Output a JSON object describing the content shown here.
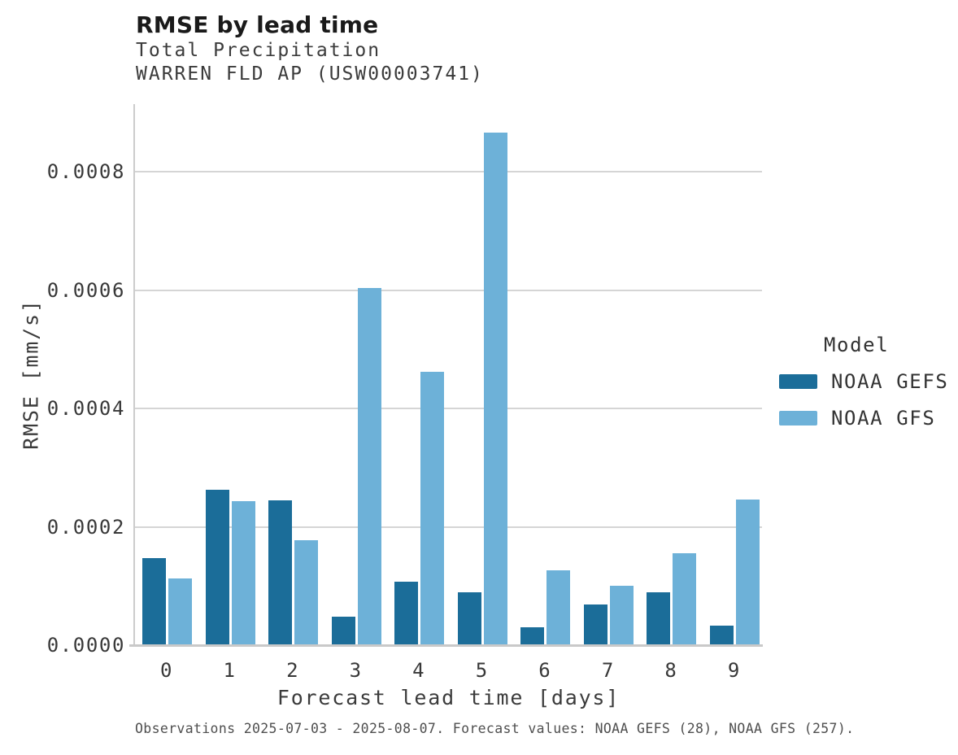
{
  "chart_data": {
    "type": "bar",
    "title": "RMSE by lead time",
    "subtitle1": "Total Precipitation",
    "subtitle2": "WARREN FLD AP (USW00003741)",
    "xlabel": "Forecast lead time [days]",
    "ylabel": "RMSE [mm/s]",
    "categories": [
      "0",
      "1",
      "2",
      "3",
      "4",
      "5",
      "6",
      "7",
      "8",
      "9"
    ],
    "y_ticks": [
      "0.0000",
      "0.0002",
      "0.0004",
      "0.0006",
      "0.0008"
    ],
    "ylim": [
      0,
      0.00092
    ],
    "grid": true,
    "legend": {
      "title": "Model",
      "position": "center-right"
    },
    "series": [
      {
        "name": "NOAA GEFS",
        "color": "#1b6d99",
        "values": [
          0.000147,
          0.000263,
          0.000245,
          4.8e-05,
          0.000107,
          9e-05,
          3e-05,
          6.9e-05,
          8.9e-05,
          3.3e-05
        ]
      },
      {
        "name": "NOAA GFS",
        "color": "#6db1d8",
        "values": [
          0.000113,
          0.000243,
          0.000178,
          0.000604,
          0.000462,
          0.000866,
          0.000126,
          0.0001,
          0.000156,
          0.000246
        ]
      }
    ],
    "footnote": "Observations 2025-07-03 - 2025-08-07. Forecast values: NOAA GEFS (28), NOAA GFS (257)."
  }
}
